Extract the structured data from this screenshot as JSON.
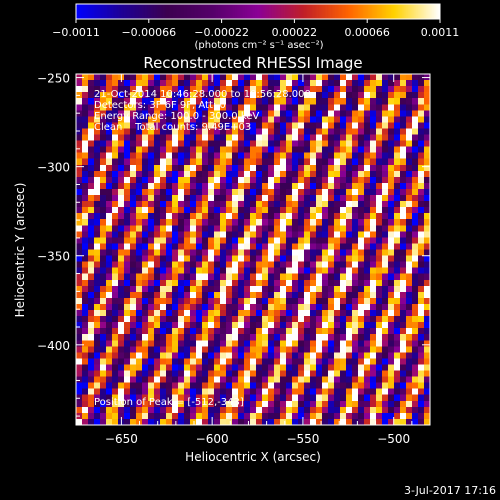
{
  "chart_data": {
    "type": "heatmap",
    "title": "Reconstructed RHESSI Image",
    "xlabel": "Heliocentric X (arcsec)",
    "ylabel": "Heliocentric Y (arcsec)",
    "xlim": [
      -675,
      -480
    ],
    "ylim": [
      -445,
      -248
    ],
    "x_ticks": [
      -650,
      -600,
      -550,
      -500
    ],
    "x_tick_labels": [
      "−650",
      "−600",
      "−550",
      "−500"
    ],
    "y_ticks": [
      -250,
      -300,
      -350,
      -400
    ],
    "y_tick_labels": [
      "−250",
      "−300",
      "−350",
      "−400"
    ],
    "annotations": [
      "21-Oct-2014 10:46:28.000 to 10:56:28.000",
      "Detectors: 3F 6F 9F, Att: 0",
      "Energy Range: 100.0 - 300.0 keV",
      "Clean    Total counts: 9.49E+03"
    ],
    "peak_label": "Position of Peak = [-512,-343]",
    "colorbar": {
      "ticks": [
        "−0.0011",
        "−0.00066",
        "−0.00022",
        "0.00022",
        "0.00066",
        "0.0011"
      ],
      "range": [
        -0.0011,
        0.0011
      ],
      "label": "(photons cm⁻² s⁻¹ asec⁻²)"
    },
    "colormap": [
      "#0000ff",
      "#1e0096",
      "#3c0050",
      "#55006a",
      "#8b0096",
      "#c01e28",
      "#ff6400",
      "#ffd200",
      "#ffffff"
    ]
  },
  "footer": {
    "date": "3-Jul-2017 17:16"
  }
}
